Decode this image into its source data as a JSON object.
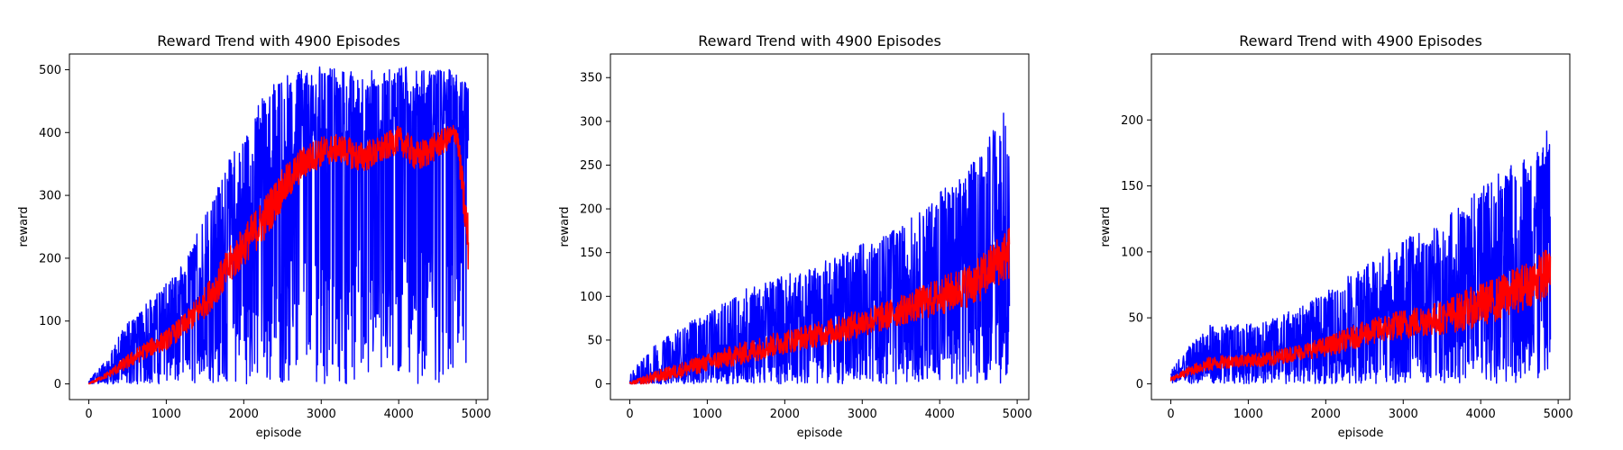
{
  "colors": {
    "raw": "#0000ff",
    "smoothed": "#ff0000",
    "axes": "#000000",
    "background": "#ffffff"
  },
  "chart_data": [
    {
      "type": "line",
      "title": "Reward Trend with 4900 Episodes",
      "xlabel": "episode",
      "ylabel": "reward",
      "xlim": [
        -250,
        5150
      ],
      "ylim": [
        -25,
        525
      ],
      "xticks": [
        0,
        1000,
        2000,
        3000,
        4000,
        5000
      ],
      "xtick_labels": [
        "0",
        "1000",
        "2000",
        "3000",
        "4000",
        "5000"
      ],
      "yticks": [
        0,
        100,
        200,
        300,
        400,
        500
      ],
      "ytick_labels": [
        "0",
        "100",
        "200",
        "300",
        "400",
        "500"
      ],
      "grid": false,
      "episodes": 4900,
      "series": [
        {
          "role": "raw",
          "color": "#0000ff",
          "x": [
            0,
            250,
            500,
            750,
            1000,
            1250,
            1500,
            1750,
            2000,
            2250,
            2500,
            2750,
            3000,
            3250,
            3500,
            3750,
            4000,
            4250,
            4500,
            4750,
            4900
          ],
          "y_upper": [
            5,
            45,
            100,
            130,
            160,
            195,
            270,
            345,
            400,
            460,
            490,
            500,
            505,
            500,
            500,
            500,
            505,
            505,
            500,
            500,
            490
          ],
          "y_lower": [
            0,
            0,
            0,
            0,
            0,
            0,
            0,
            0,
            0,
            0,
            0,
            0,
            0,
            0,
            0,
            0,
            0,
            0,
            0,
            0,
            0
          ]
        },
        {
          "role": "smoothed",
          "color": "#ff0000",
          "x": [
            0,
            250,
            500,
            750,
            1000,
            1250,
            1500,
            1750,
            2000,
            2250,
            2500,
            2750,
            3000,
            3250,
            3500,
            3750,
            4000,
            4250,
            4500,
            4750,
            4900
          ],
          "y": [
            0,
            15,
            35,
            55,
            70,
            95,
            130,
            175,
            220,
            260,
            310,
            350,
            370,
            375,
            360,
            370,
            390,
            360,
            380,
            400,
            220
          ]
        }
      ]
    },
    {
      "type": "line",
      "title": "Reward Trend with 4900 Episodes",
      "xlabel": "episode",
      "ylabel": "reward",
      "xlim": [
        -250,
        5150
      ],
      "ylim": [
        -18,
        377
      ],
      "xticks": [
        0,
        1000,
        2000,
        3000,
        4000,
        5000
      ],
      "xtick_labels": [
        "0",
        "1000",
        "2000",
        "3000",
        "4000",
        "5000"
      ],
      "yticks": [
        0,
        50,
        100,
        150,
        200,
        250,
        300,
        350
      ],
      "ytick_labels": [
        "0",
        "50",
        "100",
        "150",
        "200",
        "250",
        "300",
        "350"
      ],
      "grid": false,
      "episodes": 4900,
      "series": [
        {
          "role": "raw",
          "color": "#0000ff",
          "x": [
            0,
            250,
            500,
            750,
            1000,
            1250,
            1500,
            1750,
            2000,
            2250,
            2500,
            2750,
            3000,
            3250,
            3500,
            3750,
            4000,
            4250,
            4500,
            4750,
            4900
          ],
          "y_upper": [
            10,
            40,
            55,
            70,
            80,
            95,
            110,
            115,
            125,
            130,
            140,
            150,
            160,
            170,
            180,
            200,
            220,
            240,
            260,
            300,
            320
          ],
          "y_lower": [
            0,
            0,
            0,
            0,
            0,
            0,
            0,
            0,
            0,
            0,
            0,
            0,
            0,
            0,
            0,
            0,
            0,
            0,
            0,
            0,
            0
          ]
        },
        {
          "role": "smoothed",
          "color": "#ff0000",
          "x": [
            0,
            250,
            500,
            750,
            1000,
            1250,
            1500,
            1750,
            2000,
            2250,
            2500,
            2750,
            3000,
            3250,
            3500,
            3750,
            4000,
            4250,
            4500,
            4750,
            4900
          ],
          "y": [
            0,
            6,
            12,
            18,
            24,
            30,
            36,
            42,
            48,
            53,
            58,
            63,
            70,
            76,
            84,
            92,
            100,
            108,
            118,
            140,
            150
          ]
        }
      ]
    },
    {
      "type": "line",
      "title": "Reward Trend with 4900 Episodes",
      "xlabel": "episode",
      "ylabel": "reward",
      "xlim": [
        -250,
        5150
      ],
      "ylim": [
        -12,
        250
      ],
      "xticks": [
        0,
        1000,
        2000,
        3000,
        4000,
        5000
      ],
      "xtick_labels": [
        "0",
        "1000",
        "2000",
        "3000",
        "4000",
        "5000"
      ],
      "yticks": [
        0,
        50,
        100,
        150,
        200
      ],
      "ytick_labels": [
        "0",
        "50",
        "100",
        "150",
        "200"
      ],
      "grid": false,
      "episodes": 4900,
      "series": [
        {
          "role": "raw",
          "color": "#0000ff",
          "x": [
            0,
            250,
            500,
            750,
            1000,
            1250,
            1500,
            1750,
            2000,
            2250,
            2500,
            2750,
            3000,
            3250,
            3500,
            3750,
            4000,
            4250,
            4500,
            4750,
            4900
          ],
          "y_upper": [
            10,
            30,
            45,
            45,
            45,
            50,
            55,
            60,
            70,
            80,
            90,
            100,
            110,
            115,
            120,
            140,
            150,
            160,
            170,
            180,
            200
          ],
          "y_lower": [
            0,
            0,
            0,
            0,
            0,
            0,
            0,
            0,
            0,
            0,
            0,
            0,
            0,
            0,
            0,
            0,
            0,
            0,
            0,
            0,
            0
          ]
        },
        {
          "role": "smoothed",
          "color": "#ff0000",
          "x": [
            0,
            250,
            500,
            750,
            1000,
            1250,
            1500,
            1750,
            2000,
            2250,
            2500,
            2750,
            3000,
            3250,
            3500,
            3750,
            4000,
            4250,
            4500,
            4750,
            4900
          ],
          "y": [
            3,
            10,
            15,
            17,
            18,
            18,
            22,
            25,
            28,
            33,
            38,
            42,
            45,
            48,
            50,
            55,
            60,
            65,
            72,
            80,
            85
          ]
        }
      ]
    }
  ]
}
